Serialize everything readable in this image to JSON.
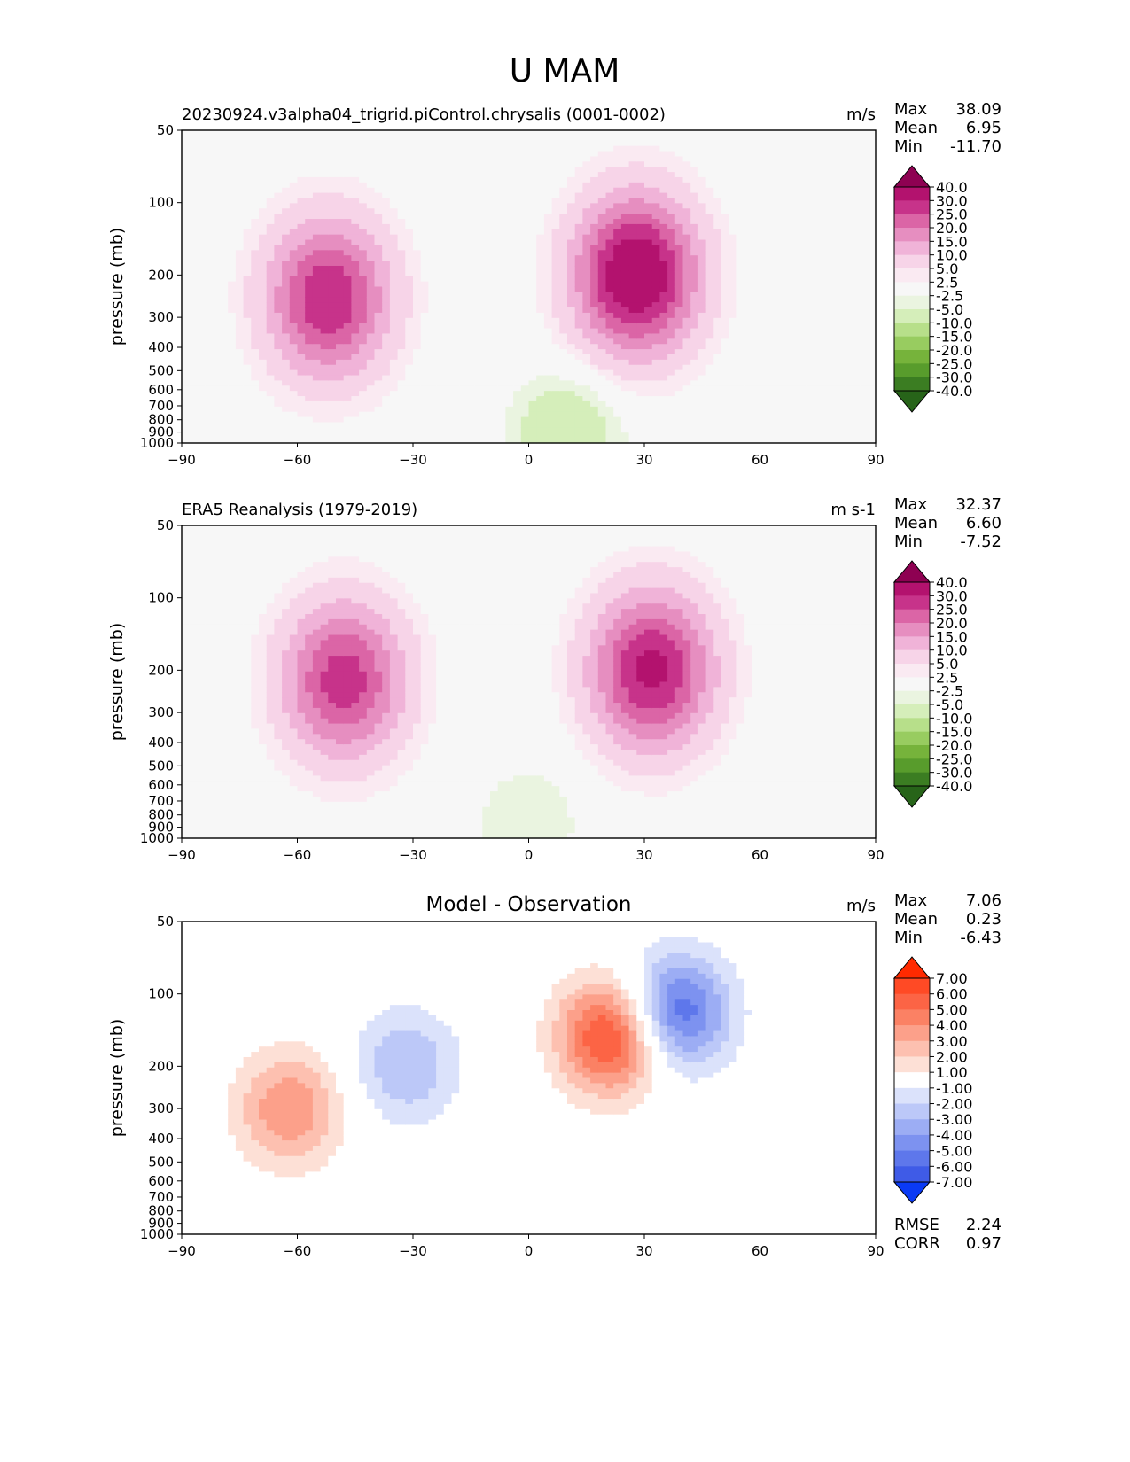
{
  "figure": {
    "title": "U MAM"
  },
  "chart_data": [
    {
      "type": "heatmap",
      "panel": "model",
      "title": "20230924.v3alpha04_trigrid.piControl.chrysalis (0001-0002)",
      "units": "m/s",
      "xlabel": "",
      "ylabel": "pressure (mb)",
      "xlim": [
        -90,
        90
      ],
      "ylim": [
        1000,
        50
      ],
      "xticks": [
        "−90",
        "−60",
        "−30",
        "0",
        "30",
        "60",
        "90"
      ],
      "yticks": [
        "50",
        "100",
        "200",
        "300",
        "400",
        "500",
        "600",
        "700",
        "800",
        "900",
        "1000"
      ],
      "stats": [
        {
          "label": "Max",
          "value": "38.09"
        },
        {
          "label": "Mean",
          "value": "6.95"
        },
        {
          "label": "Min",
          "value": "-11.70"
        }
      ],
      "colorbar_labels": [
        "40.0",
        "30.0",
        "25.0",
        "20.0",
        "15.0",
        "10.0",
        "5.0",
        "2.5",
        "-2.5",
        "-5.0",
        "-10.0",
        "-15.0",
        "-20.0",
        "-25.0",
        "-30.0",
        "-40.0"
      ],
      "colorbar_colors": [
        "#8e0152",
        "#b3126e",
        "#c7338a",
        "#db65a6",
        "#e68ec0",
        "#f0b3d8",
        "#f7d4e8",
        "#faeaf2",
        "#f7f7f7",
        "#eaf4e0",
        "#d5eeba",
        "#b7df8a",
        "#98cc60",
        "#76b33b",
        "#589c2c",
        "#3b7d22",
        "#276419"
      ],
      "features": [
        {
          "kind": "jet",
          "lat": -52,
          "p": 250,
          "peak": 30
        },
        {
          "kind": "jet",
          "lat": 28,
          "p": 200,
          "peak": 38
        },
        {
          "kind": "easterly",
          "lat": 10,
          "p": 900,
          "peak": -10
        }
      ]
    },
    {
      "type": "heatmap",
      "panel": "reference",
      "title": "ERA5 Reanalysis (1979-2019)",
      "units": "m s-1",
      "xlabel": "",
      "ylabel": "pressure (mb)",
      "xlim": [
        -90,
        90
      ],
      "ylim": [
        1000,
        50
      ],
      "xticks": [
        "−90",
        "−60",
        "−30",
        "0",
        "30",
        "60",
        "90"
      ],
      "yticks": [
        "50",
        "100",
        "200",
        "300",
        "400",
        "500",
        "600",
        "700",
        "800",
        "900",
        "1000"
      ],
      "stats": [
        {
          "label": "Max",
          "value": "32.37"
        },
        {
          "label": "Mean",
          "value": "6.60"
        },
        {
          "label": "Min",
          "value": "-7.52"
        }
      ],
      "colorbar_labels": [
        "40.0",
        "30.0",
        "25.0",
        "20.0",
        "15.0",
        "10.0",
        "5.0",
        "2.5",
        "-2.5",
        "-5.0",
        "-10.0",
        "-15.0",
        "-20.0",
        "-25.0",
        "-30.0",
        "-40.0"
      ],
      "colorbar_colors": [
        "#8e0152",
        "#b3126e",
        "#c7338a",
        "#db65a6",
        "#e68ec0",
        "#f0b3d8",
        "#f7d4e8",
        "#faeaf2",
        "#f7f7f7",
        "#eaf4e0",
        "#d5eeba",
        "#b7df8a",
        "#98cc60",
        "#76b33b",
        "#589c2c",
        "#3b7d22",
        "#276419"
      ],
      "features": [
        {
          "kind": "jet",
          "lat": -48,
          "p": 220,
          "peak": 28
        },
        {
          "kind": "jet",
          "lat": 32,
          "p": 200,
          "peak": 32
        },
        {
          "kind": "easterly",
          "lat": 0,
          "p": 850,
          "peak": -5
        }
      ]
    },
    {
      "type": "heatmap",
      "panel": "difference",
      "title": "Model - Observation",
      "units": "m/s",
      "xlabel": "",
      "ylabel": "pressure (mb)",
      "xlim": [
        -90,
        90
      ],
      "ylim": [
        1000,
        50
      ],
      "xticks": [
        "−90",
        "−60",
        "−30",
        "0",
        "30",
        "60",
        "90"
      ],
      "yticks": [
        "50",
        "100",
        "200",
        "300",
        "400",
        "500",
        "600",
        "700",
        "800",
        "900",
        "1000"
      ],
      "stats": [
        {
          "label": "Max",
          "value": "7.06"
        },
        {
          "label": "Mean",
          "value": "0.23"
        },
        {
          "label": "Min",
          "value": "-6.43"
        }
      ],
      "extra_stats": [
        {
          "label": "RMSE",
          "value": "2.24"
        },
        {
          "label": "CORR",
          "value": "0.97"
        }
      ],
      "colorbar_labels": [
        "7.00",
        "6.00",
        "5.00",
        "4.00",
        "3.00",
        "2.00",
        "1.00",
        "-1.00",
        "-2.00",
        "-3.00",
        "-4.00",
        "-5.00",
        "-6.00",
        "-7.00"
      ],
      "colorbar_colors": [
        "#ff2a00",
        "#ff4a25",
        "#fc6445",
        "#fb8164",
        "#fca08a",
        "#fdc0b0",
        "#fde0d6",
        "#ffffff",
        "#dbe2fb",
        "#bcc8f8",
        "#9cadf4",
        "#7d92f0",
        "#5e77eb",
        "#3f5be7",
        "#0a3af5"
      ],
      "features": [
        {
          "kind": "positive",
          "lat": 22,
          "p": 150,
          "peak": 7
        },
        {
          "kind": "positive",
          "lat": -62,
          "p": 300,
          "peak": 4
        },
        {
          "kind": "negative",
          "lat": 38,
          "p": 120,
          "peak": -6.4
        },
        {
          "kind": "negative",
          "lat": -32,
          "p": 200,
          "peak": -3
        }
      ]
    }
  ]
}
